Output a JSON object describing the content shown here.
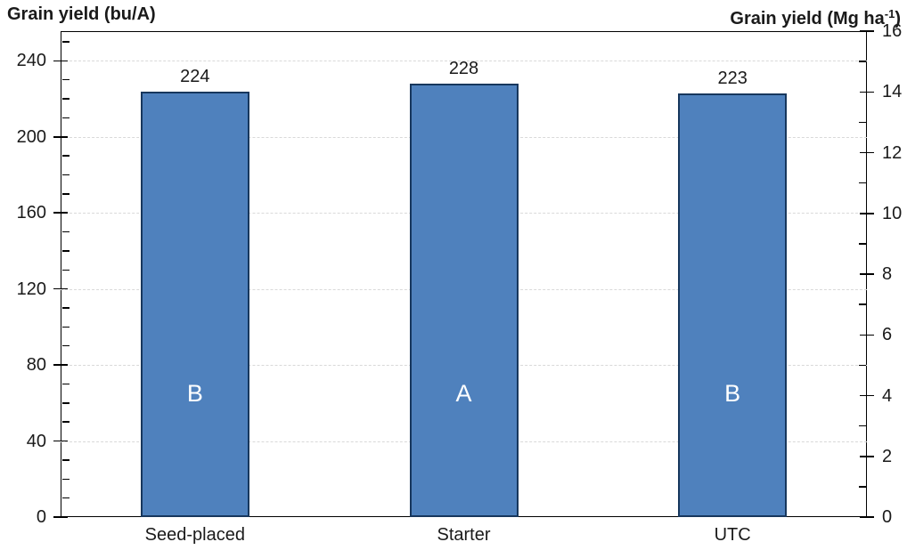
{
  "titles": {
    "left": "Grain yield (bu/A)",
    "right_prefix": "Grain yield (Mg ha",
    "right_sup": "-1",
    "right_suffix": ")"
  },
  "chart_data": {
    "type": "bar",
    "title": "",
    "categories": [
      "Seed-placed",
      "Starter",
      "UTC"
    ],
    "values": [
      224,
      228,
      223
    ],
    "bar_letters": [
      "B",
      "A",
      "B"
    ],
    "left_axis": {
      "label": "Grain yield (bu/A)",
      "ticks": [
        0,
        40,
        80,
        120,
        160,
        200,
        240
      ],
      "minor_step": 10,
      "minor_max": 250,
      "max": 255.6
    },
    "right_axis": {
      "label": "Grain yield (Mg ha-1)",
      "ticks": [
        0,
        2,
        4,
        6,
        8,
        10,
        12,
        14,
        16
      ],
      "minor_step": 1,
      "minor_max": 15,
      "max": 16
    },
    "grid": "horizontal dashed at left-axis major ticks",
    "legend": "none",
    "colors": {
      "bar_fill": "#4F81BD",
      "bar_border": "#17375D",
      "gridline": "#D9D9D9",
      "axis": "#000000",
      "text": "#1A1A1A",
      "letter": "#FFFFFF"
    }
  }
}
